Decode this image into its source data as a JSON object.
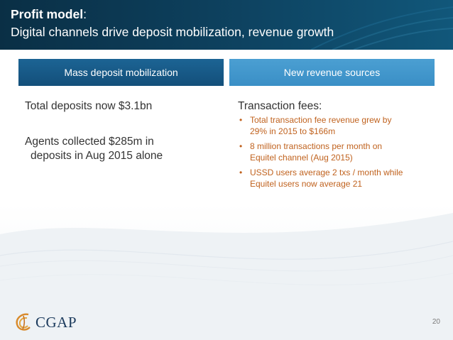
{
  "header": {
    "title_bold": "Profit model",
    "title_colon": ":",
    "subtitle": "Digital channels drive deposit mobilization, revenue growth"
  },
  "columns": {
    "left": {
      "heading": "Mass deposit mobilization",
      "item1": "Total deposits now $3.1bn",
      "item2_line1": "Agents collected $285m in",
      "item2_line2": "deposits in Aug 2015 alone"
    },
    "right": {
      "heading": "New revenue sources",
      "title": "Transaction fees:",
      "bullets": [
        {
          "line1": "Total transaction fee revenue grew by",
          "line2": "29% in 2015 to $166m"
        },
        {
          "line1": "8 million transactions per month on",
          "line2": "Equitel channel (Aug 2015)"
        },
        {
          "line1": "USSD users average 2 txs / month while",
          "line2": "Equitel users now average 21"
        }
      ]
    }
  },
  "footer": {
    "logo_text": "CGAP",
    "page_number": "20"
  },
  "colors": {
    "header_dark": "#0d3f5c",
    "left_heading_bg": "#1c6494",
    "right_heading_bg": "#4b9fd2",
    "bullet_text": "#c0621e"
  }
}
